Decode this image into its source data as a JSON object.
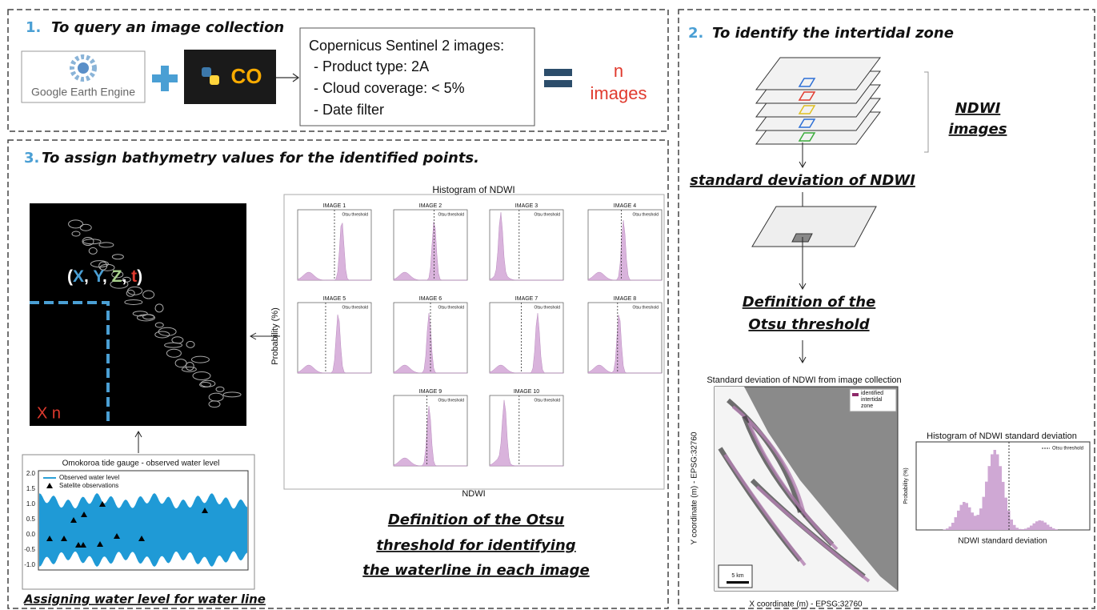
{
  "panel1": {
    "number": "1.",
    "title": "To query an image collection",
    "logos": [
      "Google Earth Engine",
      "CO"
    ],
    "criteria": {
      "heading": "Copernicus Sentinel 2 images:",
      "items": [
        "- Product type: 2A",
        "- Cloud coverage: < 5%",
        "- Date filter"
      ]
    },
    "result": [
      "n",
      "images"
    ]
  },
  "panel2": {
    "number": "2.",
    "title": "To identify the intertidal zone",
    "stack_label": [
      "NDWI",
      "images"
    ],
    "step1": "standard deviation of NDWI",
    "step2": [
      "Definition of the",
      "Otsu threshold"
    ],
    "map": {
      "title": "Standard deviation of NDWI from image collection",
      "legend": [
        "identified",
        "intertidal",
        "zone"
      ],
      "scale": "5 km",
      "xlabel": "X coordinate (m) - EPSG:32760",
      "ylabel": "Y coordinate (m) - EPSG:32760"
    },
    "histogram": {
      "title": "Histogram of NDWI standard deviation",
      "legend": "Otsu threshold",
      "xlabel": "NDWI standard deviation",
      "ylabel": "Probability (%)"
    }
  },
  "panel3": {
    "number": "3.",
    "title": "To assign bathymetry values for the identified points.",
    "coords": [
      "(",
      "X",
      ", ",
      "Y",
      ", ",
      "Z",
      ", ",
      "t",
      ")"
    ],
    "image_label": "X n",
    "tide": {
      "title": "Omokoroa tide gauge - observed water level",
      "yticks": [
        "2.0",
        "1.5",
        "1.0",
        "0.5",
        "0.0",
        "-0.5",
        "-1.0"
      ],
      "legend": [
        "Observed water level",
        "Satelite observations"
      ]
    },
    "tide_caption": "Assigning water level for water line",
    "histograms": {
      "title": "Histogram of NDWI",
      "ylabel": "Probability (%)",
      "xlabel": "NDWI",
      "legend": "Otsu threshold",
      "images": [
        "IMAGE 1",
        "IMAGE 2",
        "IMAGE 3",
        "IMAGE 4",
        "IMAGE 5",
        "IMAGE 6",
        "IMAGE 7",
        "IMAGE 8",
        "IMAGE 9",
        "IMAGE 10"
      ]
    },
    "caption": [
      "Definition of the Otsu",
      "threshold for identifying",
      "the waterline in each image"
    ]
  }
}
